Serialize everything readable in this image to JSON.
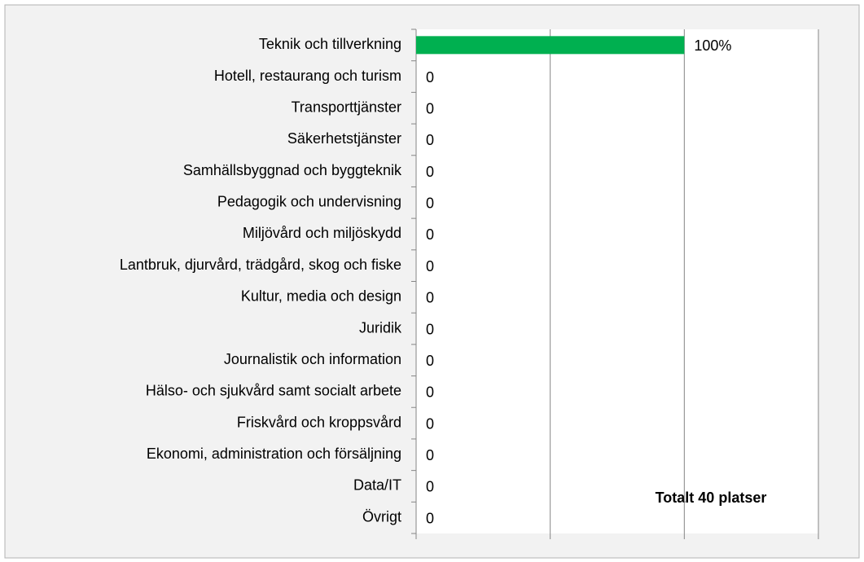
{
  "chart_data": {
    "type": "barh",
    "categories": [
      "Teknik och tillverkning",
      "Hotell, restaurang och turism",
      "Transporttjänster",
      "Säkerhetstjänster",
      "Samhällsbyggnad och byggteknik",
      "Pedagogik och undervisning",
      "Miljövård och miljöskydd",
      "Lantbruk, djurvård, trädgård, skog och fiske",
      "Kultur, media och design",
      "Juridik",
      "Journalistik och information",
      "Hälso- och sjukvård samt socialt arbete",
      "Friskvård och kroppsvård",
      "Ekonomi, administration och försäljning",
      "Data/IT",
      "Övrigt"
    ],
    "values": [
      100,
      0,
      0,
      0,
      0,
      0,
      0,
      0,
      0,
      0,
      0,
      0,
      0,
      0,
      0,
      0
    ],
    "value_labels": [
      "100%",
      "0",
      "0",
      "0",
      "0",
      "0",
      "0",
      "0",
      "0",
      "0",
      "0",
      "0",
      "0",
      "0",
      "0",
      "0"
    ],
    "color": "#00b050",
    "xlim": [
      0,
      150
    ],
    "xticks": [
      0,
      50,
      100,
      150
    ],
    "grid": true,
    "annotation": "Totalt 40 platser"
  }
}
